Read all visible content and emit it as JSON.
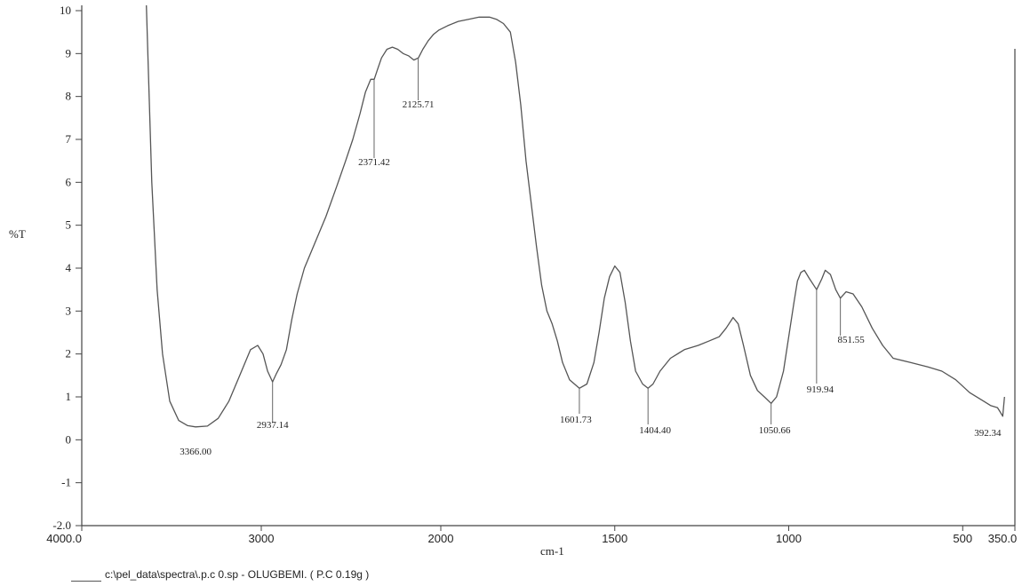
{
  "chart_data": {
    "type": "line",
    "title": "",
    "xlabel": "cm-1",
    "ylabel": "%T",
    "xlim": [
      4000,
      350
    ],
    "ylim": [
      -2,
      10
    ],
    "x_reversed": true,
    "grid": false,
    "legend": "none",
    "x_ticks": [
      {
        "value": 4000,
        "label": "4000.0"
      },
      {
        "value": 3000,
        "label": "3000"
      },
      {
        "value": 2000,
        "label": "2000"
      },
      {
        "value": 1500,
        "label": "1500"
      },
      {
        "value": 1000,
        "label": "1000"
      },
      {
        "value": 500,
        "label": "500"
      },
      {
        "value": 350,
        "label": "350.0"
      }
    ],
    "y_ticks": [
      {
        "value": -2,
        "label": "-2.0"
      },
      {
        "value": -1,
        "label": "-1"
      },
      {
        "value": 0,
        "label": "0"
      },
      {
        "value": 1,
        "label": "1"
      },
      {
        "value": 2,
        "label": "2"
      },
      {
        "value": 3,
        "label": "3"
      },
      {
        "value": 4,
        "label": "4"
      },
      {
        "value": 5,
        "label": "5"
      },
      {
        "value": 6,
        "label": "6"
      },
      {
        "value": 7,
        "label": "7"
      },
      {
        "value": 8,
        "label": "8"
      },
      {
        "value": 9,
        "label": "9"
      },
      {
        "value": 10,
        "label": "10"
      }
    ],
    "series": [
      {
        "color": "#555555",
        "x": [
          3640,
          3610,
          3580,
          3550,
          3510,
          3460,
          3410,
          3366,
          3300,
          3240,
          3180,
          3120,
          3060,
          3020,
          2990,
          2965,
          2937,
          2915,
          2890,
          2860,
          2830,
          2800,
          2760,
          2700,
          2640,
          2580,
          2530,
          2490,
          2450,
          2420,
          2390,
          2371,
          2355,
          2330,
          2300,
          2270,
          2240,
          2210,
          2180,
          2150,
          2125,
          2100,
          2070,
          2040,
          2010,
          1980,
          1950,
          1920,
          1890,
          1860,
          1840,
          1820,
          1800,
          1785,
          1770,
          1755,
          1740,
          1725,
          1710,
          1695,
          1680,
          1665,
          1650,
          1630,
          1601.73,
          1580,
          1560,
          1545,
          1530,
          1515,
          1500,
          1485,
          1470,
          1455,
          1440,
          1420,
          1404.4,
          1390,
          1370,
          1340,
          1300,
          1260,
          1230,
          1200,
          1180,
          1160,
          1145,
          1130,
          1110,
          1090,
          1070,
          1050.66,
          1035,
          1015,
          1000,
          985,
          975,
          965,
          955,
          940,
          919.94,
          905,
          895,
          880,
          865,
          851.55,
          835,
          815,
          790,
          760,
          730,
          700,
          650,
          600,
          560,
          520,
          480,
          440,
          420,
          400,
          392.34,
          385,
          380
        ],
        "y": [
          10.5,
          6.0,
          3.5,
          2.0,
          0.9,
          0.45,
          0.33,
          0.3,
          0.32,
          0.5,
          0.9,
          1.5,
          2.1,
          2.2,
          2.0,
          1.6,
          1.35,
          1.55,
          1.75,
          2.1,
          2.8,
          3.4,
          4.0,
          4.6,
          5.2,
          5.9,
          6.5,
          7.0,
          7.6,
          8.1,
          8.4,
          8.4,
          8.6,
          8.9,
          9.1,
          9.15,
          9.1,
          9.0,
          8.95,
          8.85,
          8.9,
          9.1,
          9.3,
          9.45,
          9.55,
          9.65,
          9.75,
          9.8,
          9.85,
          9.85,
          9.8,
          9.7,
          9.5,
          8.8,
          7.8,
          6.5,
          5.5,
          4.5,
          3.6,
          3.0,
          2.7,
          2.3,
          1.8,
          1.4,
          1.2,
          1.3,
          1.8,
          2.5,
          3.3,
          3.8,
          4.05,
          3.9,
          3.2,
          2.3,
          1.6,
          1.3,
          1.2,
          1.3,
          1.6,
          1.9,
          2.1,
          2.2,
          2.3,
          2.4,
          2.6,
          2.85,
          2.7,
          2.2,
          1.5,
          1.15,
          1.0,
          0.85,
          1.0,
          1.6,
          2.4,
          3.2,
          3.7,
          3.9,
          3.95,
          3.75,
          3.5,
          3.75,
          3.95,
          3.85,
          3.5,
          3.3,
          3.45,
          3.4,
          3.1,
          2.6,
          2.2,
          1.9,
          1.8,
          1.7,
          1.6,
          1.4,
          1.1,
          0.9,
          0.8,
          0.75,
          0.65,
          0.55,
          1.0
        ]
      }
    ],
    "annotations": [
      {
        "x": 3366,
        "y": 0.3,
        "label": "3366.00"
      },
      {
        "x": 2937.14,
        "y": 1.35,
        "label": "2937.14"
      },
      {
        "x": 2371.42,
        "y": 8.4,
        "label": "2371.42"
      },
      {
        "x": 2125.71,
        "y": 8.9,
        "label": "2125.71"
      },
      {
        "x": 1601.73,
        "y": 1.2,
        "label": "1601.73"
      },
      {
        "x": 1404.4,
        "y": 1.2,
        "label": "1404.40"
      },
      {
        "x": 1050.66,
        "y": 0.85,
        "label": "1050.66"
      },
      {
        "x": 919.94,
        "y": 3.5,
        "label": "919.94"
      },
      {
        "x": 851.55,
        "y": 3.3,
        "label": "851.55"
      },
      {
        "x": 392.34,
        "y": 0.55,
        "label": "392.34"
      }
    ],
    "footer": "c:\\pel_data\\spectra\\.p.c  0.sp - OLUGBEMI. ( P.C  0.19g )"
  }
}
